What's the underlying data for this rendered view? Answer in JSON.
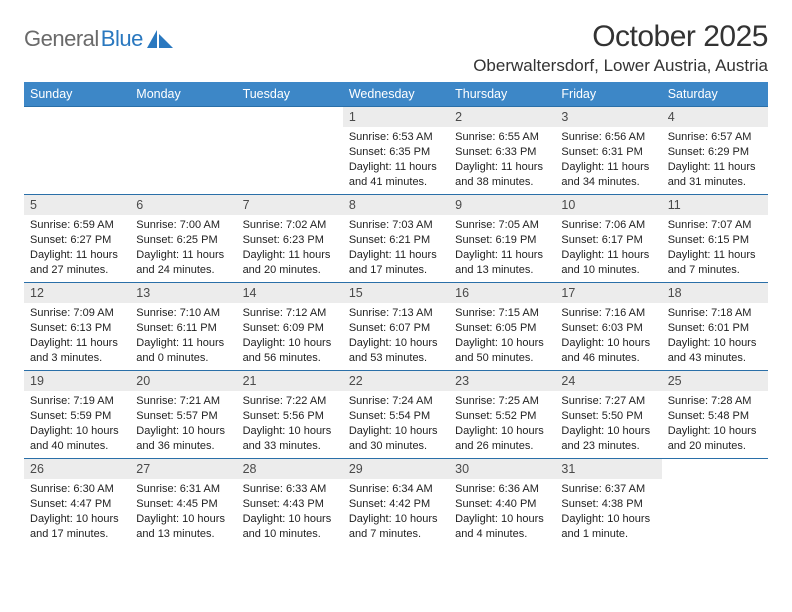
{
  "logo": {
    "text_gray": "General",
    "text_blue": "Blue"
  },
  "title": "October 2025",
  "location": "Oberwaltersdorf, Lower Austria, Austria",
  "header_bg": "#3d87c7",
  "row_border": "#2a6fa8",
  "daynum_bg": "#ececec",
  "weekdays": [
    "Sunday",
    "Monday",
    "Tuesday",
    "Wednesday",
    "Thursday",
    "Friday",
    "Saturday"
  ],
  "weeks": [
    [
      {
        "n": "",
        "sr": "",
        "ss": "",
        "dl1": "",
        "dl2": ""
      },
      {
        "n": "",
        "sr": "",
        "ss": "",
        "dl1": "",
        "dl2": ""
      },
      {
        "n": "",
        "sr": "",
        "ss": "",
        "dl1": "",
        "dl2": ""
      },
      {
        "n": "1",
        "sr": "Sunrise: 6:53 AM",
        "ss": "Sunset: 6:35 PM",
        "dl1": "Daylight: 11 hours",
        "dl2": "and 41 minutes."
      },
      {
        "n": "2",
        "sr": "Sunrise: 6:55 AM",
        "ss": "Sunset: 6:33 PM",
        "dl1": "Daylight: 11 hours",
        "dl2": "and 38 minutes."
      },
      {
        "n": "3",
        "sr": "Sunrise: 6:56 AM",
        "ss": "Sunset: 6:31 PM",
        "dl1": "Daylight: 11 hours",
        "dl2": "and 34 minutes."
      },
      {
        "n": "4",
        "sr": "Sunrise: 6:57 AM",
        "ss": "Sunset: 6:29 PM",
        "dl1": "Daylight: 11 hours",
        "dl2": "and 31 minutes."
      }
    ],
    [
      {
        "n": "5",
        "sr": "Sunrise: 6:59 AM",
        "ss": "Sunset: 6:27 PM",
        "dl1": "Daylight: 11 hours",
        "dl2": "and 27 minutes."
      },
      {
        "n": "6",
        "sr": "Sunrise: 7:00 AM",
        "ss": "Sunset: 6:25 PM",
        "dl1": "Daylight: 11 hours",
        "dl2": "and 24 minutes."
      },
      {
        "n": "7",
        "sr": "Sunrise: 7:02 AM",
        "ss": "Sunset: 6:23 PM",
        "dl1": "Daylight: 11 hours",
        "dl2": "and 20 minutes."
      },
      {
        "n": "8",
        "sr": "Sunrise: 7:03 AM",
        "ss": "Sunset: 6:21 PM",
        "dl1": "Daylight: 11 hours",
        "dl2": "and 17 minutes."
      },
      {
        "n": "9",
        "sr": "Sunrise: 7:05 AM",
        "ss": "Sunset: 6:19 PM",
        "dl1": "Daylight: 11 hours",
        "dl2": "and 13 minutes."
      },
      {
        "n": "10",
        "sr": "Sunrise: 7:06 AM",
        "ss": "Sunset: 6:17 PM",
        "dl1": "Daylight: 11 hours",
        "dl2": "and 10 minutes."
      },
      {
        "n": "11",
        "sr": "Sunrise: 7:07 AM",
        "ss": "Sunset: 6:15 PM",
        "dl1": "Daylight: 11 hours",
        "dl2": "and 7 minutes."
      }
    ],
    [
      {
        "n": "12",
        "sr": "Sunrise: 7:09 AM",
        "ss": "Sunset: 6:13 PM",
        "dl1": "Daylight: 11 hours",
        "dl2": "and 3 minutes."
      },
      {
        "n": "13",
        "sr": "Sunrise: 7:10 AM",
        "ss": "Sunset: 6:11 PM",
        "dl1": "Daylight: 11 hours",
        "dl2": "and 0 minutes."
      },
      {
        "n": "14",
        "sr": "Sunrise: 7:12 AM",
        "ss": "Sunset: 6:09 PM",
        "dl1": "Daylight: 10 hours",
        "dl2": "and 56 minutes."
      },
      {
        "n": "15",
        "sr": "Sunrise: 7:13 AM",
        "ss": "Sunset: 6:07 PM",
        "dl1": "Daylight: 10 hours",
        "dl2": "and 53 minutes."
      },
      {
        "n": "16",
        "sr": "Sunrise: 7:15 AM",
        "ss": "Sunset: 6:05 PM",
        "dl1": "Daylight: 10 hours",
        "dl2": "and 50 minutes."
      },
      {
        "n": "17",
        "sr": "Sunrise: 7:16 AM",
        "ss": "Sunset: 6:03 PM",
        "dl1": "Daylight: 10 hours",
        "dl2": "and 46 minutes."
      },
      {
        "n": "18",
        "sr": "Sunrise: 7:18 AM",
        "ss": "Sunset: 6:01 PM",
        "dl1": "Daylight: 10 hours",
        "dl2": "and 43 minutes."
      }
    ],
    [
      {
        "n": "19",
        "sr": "Sunrise: 7:19 AM",
        "ss": "Sunset: 5:59 PM",
        "dl1": "Daylight: 10 hours",
        "dl2": "and 40 minutes."
      },
      {
        "n": "20",
        "sr": "Sunrise: 7:21 AM",
        "ss": "Sunset: 5:57 PM",
        "dl1": "Daylight: 10 hours",
        "dl2": "and 36 minutes."
      },
      {
        "n": "21",
        "sr": "Sunrise: 7:22 AM",
        "ss": "Sunset: 5:56 PM",
        "dl1": "Daylight: 10 hours",
        "dl2": "and 33 minutes."
      },
      {
        "n": "22",
        "sr": "Sunrise: 7:24 AM",
        "ss": "Sunset: 5:54 PM",
        "dl1": "Daylight: 10 hours",
        "dl2": "and 30 minutes."
      },
      {
        "n": "23",
        "sr": "Sunrise: 7:25 AM",
        "ss": "Sunset: 5:52 PM",
        "dl1": "Daylight: 10 hours",
        "dl2": "and 26 minutes."
      },
      {
        "n": "24",
        "sr": "Sunrise: 7:27 AM",
        "ss": "Sunset: 5:50 PM",
        "dl1": "Daylight: 10 hours",
        "dl2": "and 23 minutes."
      },
      {
        "n": "25",
        "sr": "Sunrise: 7:28 AM",
        "ss": "Sunset: 5:48 PM",
        "dl1": "Daylight: 10 hours",
        "dl2": "and 20 minutes."
      }
    ],
    [
      {
        "n": "26",
        "sr": "Sunrise: 6:30 AM",
        "ss": "Sunset: 4:47 PM",
        "dl1": "Daylight: 10 hours",
        "dl2": "and 17 minutes."
      },
      {
        "n": "27",
        "sr": "Sunrise: 6:31 AM",
        "ss": "Sunset: 4:45 PM",
        "dl1": "Daylight: 10 hours",
        "dl2": "and 13 minutes."
      },
      {
        "n": "28",
        "sr": "Sunrise: 6:33 AM",
        "ss": "Sunset: 4:43 PM",
        "dl1": "Daylight: 10 hours",
        "dl2": "and 10 minutes."
      },
      {
        "n": "29",
        "sr": "Sunrise: 6:34 AM",
        "ss": "Sunset: 4:42 PM",
        "dl1": "Daylight: 10 hours",
        "dl2": "and 7 minutes."
      },
      {
        "n": "30",
        "sr": "Sunrise: 6:36 AM",
        "ss": "Sunset: 4:40 PM",
        "dl1": "Daylight: 10 hours",
        "dl2": "and 4 minutes."
      },
      {
        "n": "31",
        "sr": "Sunrise: 6:37 AM",
        "ss": "Sunset: 4:38 PM",
        "dl1": "Daylight: 10 hours",
        "dl2": "and 1 minute."
      },
      {
        "n": "",
        "sr": "",
        "ss": "",
        "dl1": "",
        "dl2": ""
      }
    ]
  ]
}
